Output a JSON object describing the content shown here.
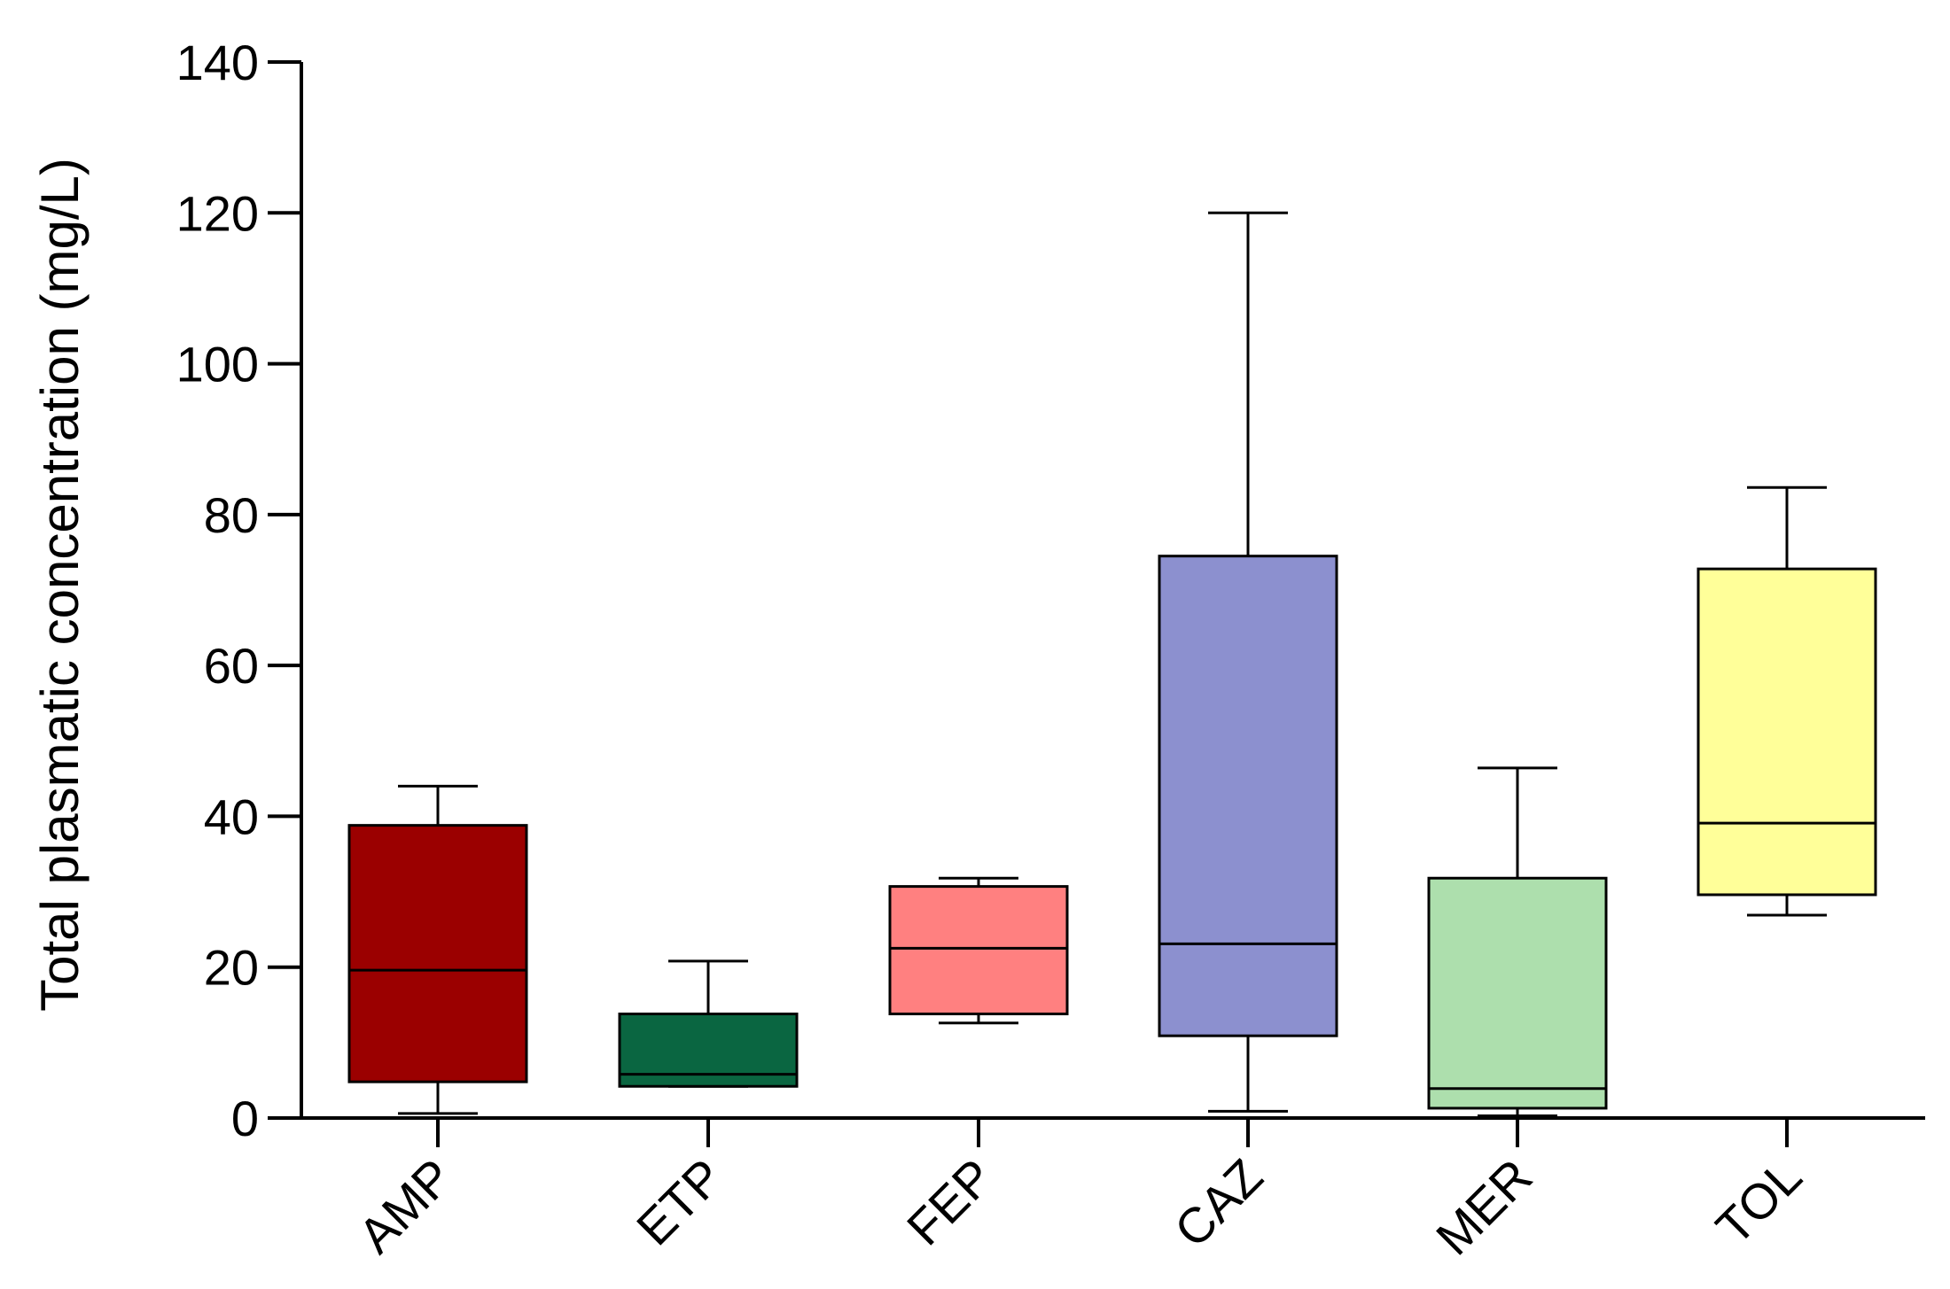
{
  "chart_data": {
    "type": "box",
    "ylabel": "Total plasmatic concentration (mg/L)",
    "xlabel": "",
    "ylim": [
      0,
      140
    ],
    "yticks": [
      0,
      20,
      40,
      60,
      80,
      100,
      120,
      140
    ],
    "categories": [
      "AMP",
      "ETP",
      "FEP",
      "CAZ",
      "MER",
      "TOL"
    ],
    "series": [
      {
        "category": "AMP",
        "min": 0.6,
        "q1": 4.8,
        "median": 19.6,
        "q3": 38.8,
        "max": 44.0,
        "color": "#9b0000"
      },
      {
        "category": "ETP",
        "min": 4.2,
        "q1": 4.2,
        "median": 5.8,
        "q3": 13.8,
        "max": 20.8,
        "color": "#0a6641"
      },
      {
        "category": "FEP",
        "min": 12.6,
        "q1": 13.8,
        "median": 22.5,
        "q3": 30.7,
        "max": 31.8,
        "color": "#ff8080"
      },
      {
        "category": "CAZ",
        "min": 0.9,
        "q1": 10.9,
        "median": 23.1,
        "q3": 74.5,
        "max": 120.0,
        "color": "#8c90cf"
      },
      {
        "category": "MER",
        "min": 0.3,
        "q1": 1.3,
        "median": 3.9,
        "q3": 31.8,
        "max": 46.4,
        "color": "#addfad"
      },
      {
        "category": "TOL",
        "min": 26.9,
        "q1": 29.6,
        "median": 39.1,
        "q3": 72.8,
        "max": 83.6,
        "color": "#ffff99"
      }
    ],
    "grid": false,
    "legend": "none"
  }
}
